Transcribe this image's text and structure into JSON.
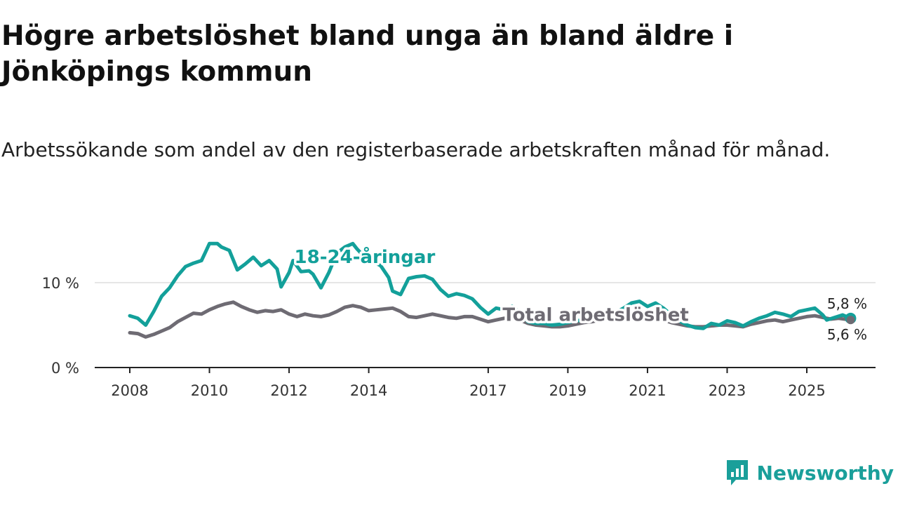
{
  "title": "Högre arbetslöshet bland unga än bland äldre i Jönköpings kommun",
  "subtitle": "Arbetssökande som andel av den registerbaserade arbetskraften månad för månad.",
  "brand": "Newsworthy",
  "colors": {
    "youth": "#13a09a",
    "total": "#6e6b73",
    "grid": "#dddddd",
    "axis": "#222222"
  },
  "chart_data": {
    "type": "line",
    "x_unit": "year",
    "xlim": [
      2007.2,
      2026.9
    ],
    "ylim": [
      0,
      15
    ],
    "yticks": [
      0,
      10
    ],
    "ytick_labels": [
      "0 %",
      "10 %"
    ],
    "xticks": [
      2008,
      2010,
      2012,
      2014,
      2017,
      2019,
      2021,
      2023,
      2025
    ],
    "xtick_labels": [
      "2008",
      "2010",
      "2012",
      "2014",
      "2017",
      "2019",
      "2021",
      "2023",
      "2025"
    ],
    "series": [
      {
        "name": "18-24-åringar",
        "color": "#13a09a",
        "end_label": "5,8 %",
        "points": [
          [
            2008.0,
            6.1
          ],
          [
            2008.2,
            5.8
          ],
          [
            2008.4,
            5.0
          ],
          [
            2008.6,
            6.6
          ],
          [
            2008.8,
            8.4
          ],
          [
            2009.0,
            9.4
          ],
          [
            2009.2,
            10.8
          ],
          [
            2009.4,
            11.9
          ],
          [
            2009.6,
            12.3
          ],
          [
            2009.8,
            12.6
          ],
          [
            2009.9,
            13.6
          ],
          [
            2010.0,
            14.6
          ],
          [
            2010.2,
            14.6
          ],
          [
            2010.3,
            14.2
          ],
          [
            2010.5,
            13.8
          ],
          [
            2010.7,
            11.5
          ],
          [
            2010.9,
            12.2
          ],
          [
            2011.1,
            13.0
          ],
          [
            2011.3,
            12.0
          ],
          [
            2011.5,
            12.6
          ],
          [
            2011.7,
            11.6
          ],
          [
            2011.8,
            9.5
          ],
          [
            2012.0,
            11.2
          ],
          [
            2012.1,
            12.6
          ],
          [
            2012.3,
            11.3
          ],
          [
            2012.5,
            11.4
          ],
          [
            2012.6,
            11.0
          ],
          [
            2012.8,
            9.4
          ],
          [
            2013.0,
            11.2
          ],
          [
            2013.2,
            13.5
          ],
          [
            2013.4,
            14.2
          ],
          [
            2013.6,
            14.6
          ],
          [
            2013.7,
            14.0
          ],
          [
            2013.9,
            13.0
          ],
          [
            2014.1,
            12.5
          ],
          [
            2014.3,
            12.0
          ],
          [
            2014.5,
            10.6
          ],
          [
            2014.6,
            9.0
          ],
          [
            2014.8,
            8.6
          ],
          [
            2015.0,
            10.5
          ],
          [
            2015.2,
            10.7
          ],
          [
            2015.4,
            10.8
          ],
          [
            2015.6,
            10.4
          ],
          [
            2015.8,
            9.2
          ],
          [
            2016.0,
            8.4
          ],
          [
            2016.2,
            8.7
          ],
          [
            2016.4,
            8.5
          ],
          [
            2016.6,
            8.1
          ],
          [
            2016.8,
            7.1
          ],
          [
            2017.0,
            6.3
          ],
          [
            2017.2,
            7.0
          ],
          [
            2017.4,
            6.8
          ],
          [
            2017.6,
            7.2
          ],
          [
            2017.8,
            6.5
          ],
          [
            2018.0,
            5.4
          ],
          [
            2018.2,
            5.2
          ],
          [
            2018.4,
            5.2
          ],
          [
            2018.6,
            5.0
          ],
          [
            2018.8,
            5.1
          ],
          [
            2019.0,
            5.3
          ],
          [
            2019.2,
            5.5
          ],
          [
            2019.4,
            5.6
          ],
          [
            2019.6,
            5.8
          ],
          [
            2019.8,
            6.0
          ],
          [
            2020.0,
            6.2
          ],
          [
            2020.2,
            6.5
          ],
          [
            2020.4,
            7.0
          ],
          [
            2020.6,
            7.6
          ],
          [
            2020.8,
            7.8
          ],
          [
            2021.0,
            7.2
          ],
          [
            2021.2,
            7.6
          ],
          [
            2021.4,
            7.0
          ],
          [
            2021.6,
            6.2
          ],
          [
            2021.8,
            5.5
          ],
          [
            2022.0,
            5.0
          ],
          [
            2022.2,
            4.7
          ],
          [
            2022.4,
            4.6
          ],
          [
            2022.6,
            5.2
          ],
          [
            2022.8,
            5.0
          ],
          [
            2023.0,
            5.5
          ],
          [
            2023.2,
            5.3
          ],
          [
            2023.4,
            4.9
          ],
          [
            2023.6,
            5.4
          ],
          [
            2023.8,
            5.8
          ],
          [
            2024.0,
            6.1
          ],
          [
            2024.2,
            6.5
          ],
          [
            2024.4,
            6.3
          ],
          [
            2024.6,
            6.0
          ],
          [
            2024.8,
            6.6
          ],
          [
            2025.0,
            6.8
          ],
          [
            2025.2,
            7.0
          ],
          [
            2025.4,
            6.2
          ],
          [
            2025.5,
            5.6
          ],
          [
            2025.7,
            5.9
          ],
          [
            2025.9,
            6.2
          ],
          [
            2026.1,
            5.8
          ]
        ]
      },
      {
        "name": "Total arbetslöshet",
        "color": "#6e6b73",
        "end_label": "5,6 %",
        "points": [
          [
            2008.0,
            4.1
          ],
          [
            2008.2,
            4.0
          ],
          [
            2008.4,
            3.6
          ],
          [
            2008.6,
            3.9
          ],
          [
            2008.8,
            4.3
          ],
          [
            2009.0,
            4.7
          ],
          [
            2009.2,
            5.4
          ],
          [
            2009.4,
            5.9
          ],
          [
            2009.6,
            6.4
          ],
          [
            2009.8,
            6.3
          ],
          [
            2010.0,
            6.8
          ],
          [
            2010.2,
            7.2
          ],
          [
            2010.4,
            7.5
          ],
          [
            2010.6,
            7.7
          ],
          [
            2010.8,
            7.2
          ],
          [
            2011.0,
            6.8
          ],
          [
            2011.2,
            6.5
          ],
          [
            2011.4,
            6.7
          ],
          [
            2011.6,
            6.6
          ],
          [
            2011.8,
            6.8
          ],
          [
            2012.0,
            6.3
          ],
          [
            2012.2,
            6.0
          ],
          [
            2012.4,
            6.3
          ],
          [
            2012.6,
            6.1
          ],
          [
            2012.8,
            6.0
          ],
          [
            2013.0,
            6.2
          ],
          [
            2013.2,
            6.6
          ],
          [
            2013.4,
            7.1
          ],
          [
            2013.6,
            7.3
          ],
          [
            2013.8,
            7.1
          ],
          [
            2014.0,
            6.7
          ],
          [
            2014.2,
            6.8
          ],
          [
            2014.4,
            6.9
          ],
          [
            2014.6,
            7.0
          ],
          [
            2014.8,
            6.6
          ],
          [
            2015.0,
            6.0
          ],
          [
            2015.2,
            5.9
          ],
          [
            2015.4,
            6.1
          ],
          [
            2015.6,
            6.3
          ],
          [
            2015.8,
            6.1
          ],
          [
            2016.0,
            5.9
          ],
          [
            2016.2,
            5.8
          ],
          [
            2016.4,
            6.0
          ],
          [
            2016.6,
            6.0
          ],
          [
            2016.8,
            5.7
          ],
          [
            2017.0,
            5.4
          ],
          [
            2017.2,
            5.6
          ],
          [
            2017.4,
            5.8
          ],
          [
            2017.6,
            5.9
          ],
          [
            2017.8,
            5.6
          ],
          [
            2018.0,
            5.2
          ],
          [
            2018.2,
            5.0
          ],
          [
            2018.4,
            4.9
          ],
          [
            2018.6,
            4.8
          ],
          [
            2018.8,
            4.8
          ],
          [
            2019.0,
            4.9
          ],
          [
            2019.2,
            5.1
          ],
          [
            2019.4,
            5.3
          ],
          [
            2019.6,
            5.4
          ],
          [
            2019.8,
            5.6
          ],
          [
            2020.0,
            5.7
          ],
          [
            2020.2,
            5.9
          ],
          [
            2020.4,
            6.2
          ],
          [
            2020.6,
            6.4
          ],
          [
            2020.8,
            6.3
          ],
          [
            2021.0,
            6.0
          ],
          [
            2021.2,
            5.8
          ],
          [
            2021.4,
            5.6
          ],
          [
            2021.6,
            5.3
          ],
          [
            2021.8,
            5.1
          ],
          [
            2022.0,
            4.9
          ],
          [
            2022.2,
            4.8
          ],
          [
            2022.4,
            4.8
          ],
          [
            2022.6,
            4.9
          ],
          [
            2022.8,
            5.0
          ],
          [
            2023.0,
            5.0
          ],
          [
            2023.2,
            4.9
          ],
          [
            2023.4,
            4.8
          ],
          [
            2023.6,
            5.1
          ],
          [
            2023.8,
            5.3
          ],
          [
            2024.0,
            5.5
          ],
          [
            2024.2,
            5.6
          ],
          [
            2024.4,
            5.4
          ],
          [
            2024.6,
            5.6
          ],
          [
            2024.8,
            5.8
          ],
          [
            2025.0,
            6.0
          ],
          [
            2025.2,
            6.1
          ],
          [
            2025.4,
            5.9
          ],
          [
            2025.6,
            5.7
          ],
          [
            2025.8,
            5.8
          ],
          [
            2026.1,
            5.6
          ]
        ]
      }
    ]
  }
}
